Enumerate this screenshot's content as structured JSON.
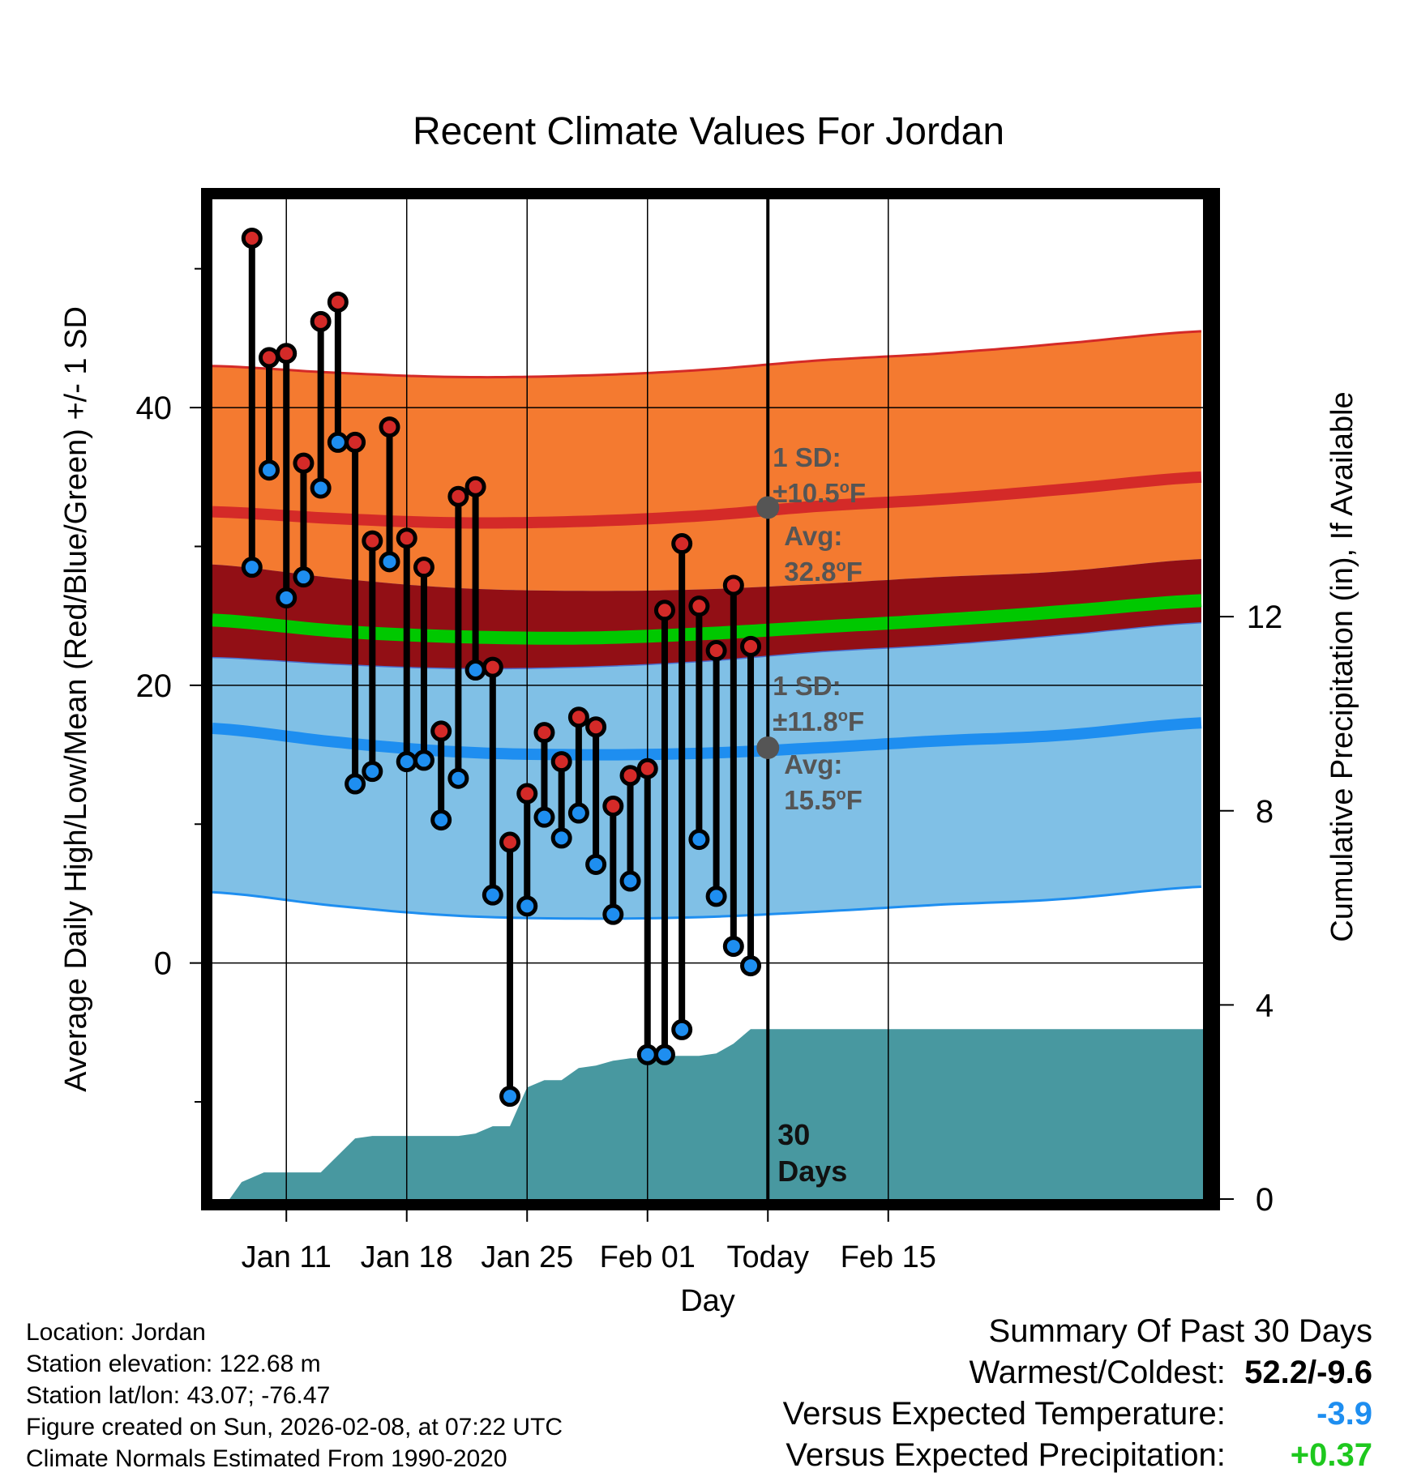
{
  "chart_data": {
    "type": "range",
    "title": "Recent Climate Values For Jordan",
    "xlabel": "Day",
    "ylabel": "Average Daily High/Low/Mean (Red/Blue/Green) +/- 1 SD",
    "y2label": "Cumulative Precipitation (in), If Available",
    "ylim": [
      -17,
      55
    ],
    "y2lim": [
      0,
      20.6
    ],
    "xlim": [
      -4.3,
      53.3
    ],
    "x_ticks": [
      {
        "day": 0,
        "label": "Jan 11"
      },
      {
        "day": 7,
        "label": "Jan 18"
      },
      {
        "day": 14,
        "label": "Jan 25"
      },
      {
        "day": 21,
        "label": "Feb 01"
      },
      {
        "day": 28,
        "label": "Today"
      },
      {
        "day": 35,
        "label": "Feb 15"
      }
    ],
    "y_ticks": [
      0,
      20,
      40
    ],
    "y_minor_ticks": [
      -10,
      10,
      30,
      50
    ],
    "y2_ticks": [
      0,
      4,
      8,
      12
    ],
    "today_day": 28,
    "today_label": "30 Days",
    "daily": {
      "days": [
        -2,
        -1,
        0,
        1,
        2,
        3,
        4,
        5,
        6,
        7,
        8,
        9,
        10,
        11,
        12,
        13,
        14,
        15,
        16,
        17,
        18,
        19,
        20,
        21,
        22,
        23,
        24,
        25,
        26,
        27
      ],
      "highs": [
        52.2,
        43.6,
        43.9,
        36.0,
        46.2,
        47.6,
        37.5,
        30.4,
        38.6,
        30.6,
        28.5,
        16.7,
        33.6,
        34.3,
        21.3,
        8.7,
        12.2,
        16.6,
        14.5,
        17.7,
        17.0,
        11.3,
        13.5,
        14.0,
        25.4,
        30.2,
        25.7,
        22.5,
        27.2,
        22.8
      ],
      "lows": [
        28.5,
        35.5,
        26.3,
        27.8,
        34.2,
        37.5,
        12.9,
        13.8,
        28.9,
        14.5,
        14.6,
        10.3,
        13.3,
        21.1,
        4.9,
        -9.6,
        4.1,
        10.5,
        9.0,
        10.8,
        7.1,
        3.5,
        5.9,
        -6.6,
        -6.6,
        -4.8,
        8.9,
        4.8,
        1.2,
        -0.2
      ]
    },
    "normals": {
      "x": [
        -4.3,
        3,
        10,
        17,
        24,
        31,
        38,
        45,
        53.3
      ],
      "high_mean": [
        32.5,
        32.0,
        31.7,
        31.8,
        32.2,
        32.9,
        33.4,
        34.1,
        35.0
      ],
      "high_sd": 10.5,
      "low_mean": [
        16.9,
        15.9,
        15.2,
        15.0,
        15.1,
        15.5,
        16.0,
        16.4,
        17.3
      ],
      "low_sd": 11.8,
      "mean_mean": [
        24.7,
        23.9,
        23.5,
        23.4,
        23.7,
        24.2,
        24.7,
        25.3,
        26.1
      ]
    },
    "precip": {
      "days": [
        -3.3,
        -2.6,
        -1.3,
        0,
        1,
        2,
        3,
        4,
        5,
        6,
        7,
        8,
        9,
        10,
        11,
        12,
        13,
        14,
        15,
        16,
        17,
        18,
        19,
        20,
        21,
        22,
        23,
        24,
        25,
        26,
        27,
        28,
        29,
        30,
        53.3
      ],
      "cum": [
        0,
        0.35,
        0.55,
        0.55,
        0.55,
        0.55,
        0.9,
        1.25,
        1.3,
        1.3,
        1.3,
        1.3,
        1.3,
        1.3,
        1.35,
        1.5,
        1.5,
        2.3,
        2.45,
        2.45,
        2.7,
        2.75,
        2.85,
        2.9,
        2.9,
        2.95,
        2.95,
        2.95,
        3.0,
        3.2,
        3.5,
        3.5,
        3.5,
        3.5,
        3.5
      ]
    },
    "annotations": {
      "high_sd": {
        "label": "1 SD:",
        "value": "±10.5°F"
      },
      "high_avg": {
        "label": "Avg:",
        "value": "32.8°F",
        "y": 32.8
      },
      "low_sd": {
        "label": "1 SD:",
        "value": "±11.8°F"
      },
      "low_avg": {
        "label": "Avg:",
        "value": "15.5°F",
        "y": 15.5
      }
    },
    "colors": {
      "high_band": "#f47a30",
      "high_line": "#d42a28",
      "overlap": "#920f15",
      "low_band": "#80c0e6",
      "low_line": "#1e8ef0",
      "mean_line": "#00c800",
      "precip": "#4898a0",
      "high_marker": "#d42a28",
      "low_marker": "#1e8ef0",
      "annotation": "#555555"
    }
  },
  "meta": {
    "location": "Location: Jordan",
    "elevation": "Station elevation: 122.68 m",
    "latlon": "Station lat/lon: 43.07; -76.47",
    "created": "Figure created on Sun, 2026-02-08, at 07:22 UTC",
    "normals": "Climate Normals Estimated From 1990-2020"
  },
  "summary": {
    "title": "Summary Of Past 30 Days",
    "warmest_label": "Warmest/Coldest:",
    "warmest_value": "52.2/-9.6",
    "temp_label": "Versus Expected Temperature:",
    "temp_value": "-3.9",
    "temp_color": "#1e8ef0",
    "precip_label": "Versus Expected Precipitation:",
    "precip_value": "+0.37",
    "precip_color": "#1ec81e"
  }
}
